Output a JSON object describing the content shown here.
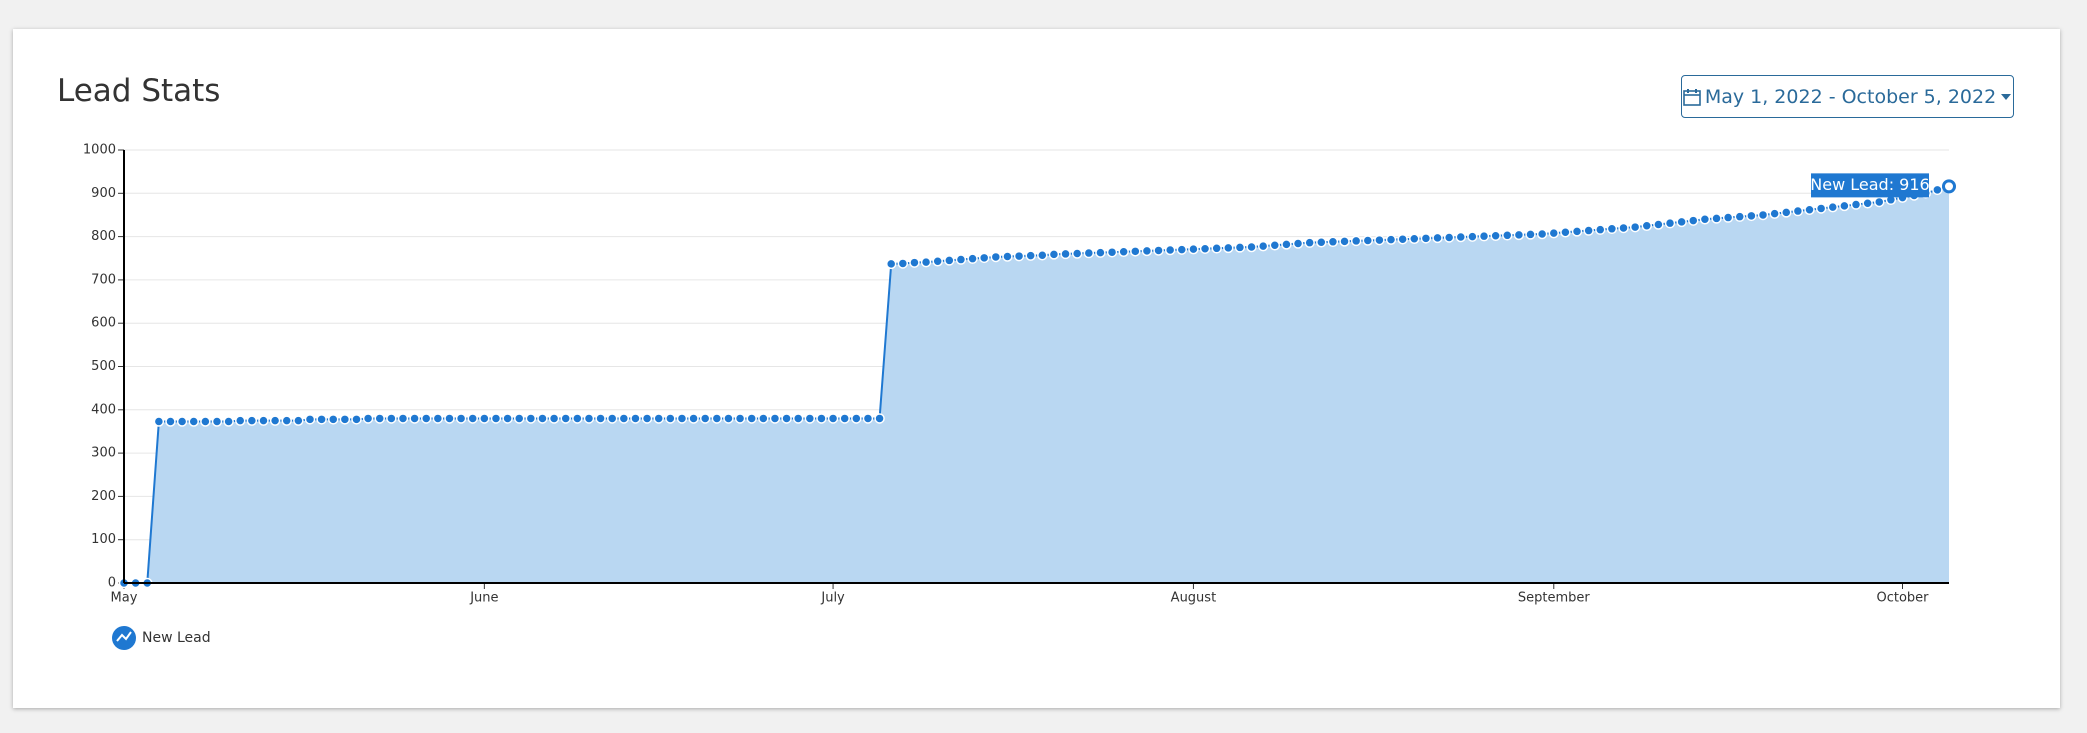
{
  "header": {
    "title": "Lead Stats",
    "date_range": "May 1, 2022 - October 5, 2022"
  },
  "chart_data": {
    "type": "line",
    "xticks": [
      {
        "value": 0,
        "label": "May"
      },
      {
        "value": 31,
        "label": "June"
      },
      {
        "value": 61,
        "label": "July"
      },
      {
        "value": 92,
        "label": "August"
      },
      {
        "value": 123,
        "label": "September"
      },
      {
        "value": 153,
        "label": "October"
      }
    ],
    "xlim": [
      0,
      157
    ],
    "ylim": [
      0,
      1000
    ],
    "yticks": [
      0,
      100,
      200,
      300,
      400,
      500,
      600,
      700,
      800,
      900,
      1000
    ],
    "grid": true,
    "series": [
      {
        "name": "New Lead",
        "color": "#1f78d1",
        "fill": "#b9d7f2",
        "values": [
          0,
          0,
          0,
          373,
          373,
          373,
          373,
          373,
          373,
          373,
          375,
          375,
          375,
          375,
          375,
          375,
          378,
          378,
          378,
          378,
          378,
          380,
          380,
          380,
          380,
          380,
          380,
          380,
          380,
          380,
          380,
          380,
          380,
          380,
          380,
          380,
          380,
          380,
          380,
          380,
          380,
          380,
          380,
          380,
          380,
          380,
          380,
          380,
          380,
          380,
          380,
          380,
          380,
          380,
          380,
          380,
          380,
          380,
          380,
          380,
          380,
          380,
          380,
          380,
          380,
          380,
          737,
          738,
          740,
          741,
          743,
          745,
          747,
          749,
          751,
          753,
          754,
          755,
          756,
          757,
          759,
          760,
          761,
          762,
          763,
          764,
          765,
          766,
          767,
          768,
          769,
          770,
          771,
          772,
          773,
          774,
          775,
          776,
          778,
          780,
          782,
          784,
          786,
          787,
          788,
          789,
          790,
          791,
          792,
          793,
          794,
          795,
          796,
          797,
          798,
          799,
          800,
          801,
          802,
          803,
          804,
          805,
          806,
          808,
          810,
          812,
          814,
          816,
          818,
          820,
          822,
          825,
          828,
          831,
          834,
          837,
          840,
          842,
          844,
          846,
          848,
          850,
          853,
          856,
          859,
          862,
          865,
          868,
          871,
          874,
          877,
          880,
          885,
          890,
          895,
          900,
          908,
          916
        ]
      }
    ],
    "tooltip": "New Lead: 916"
  }
}
